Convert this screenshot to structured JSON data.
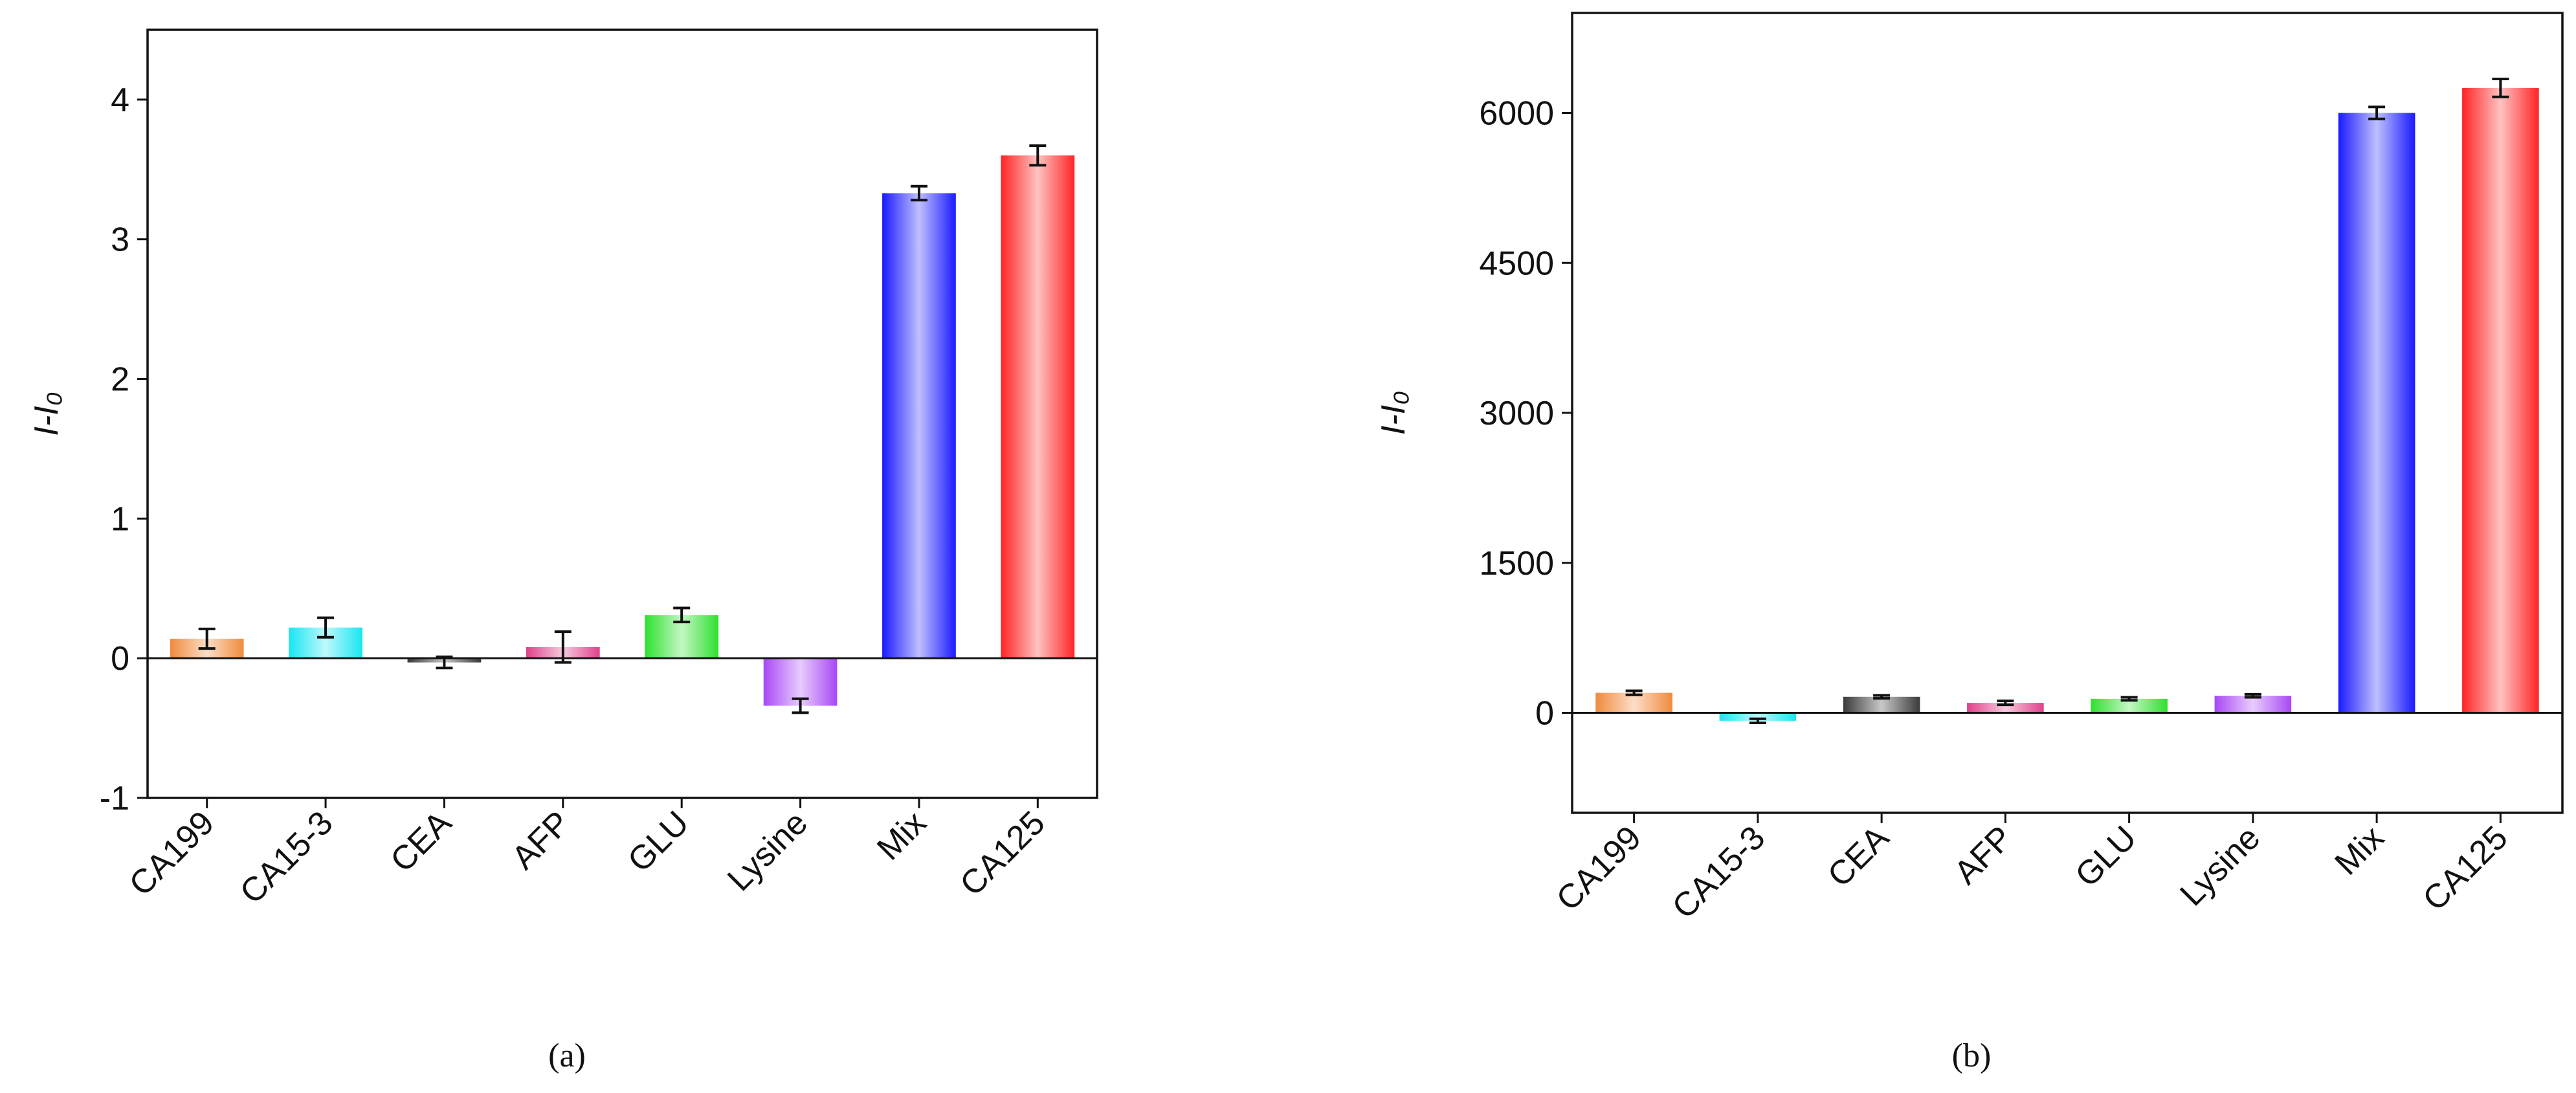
{
  "chart_data": [
    {
      "type": "bar",
      "ylabel": "I-I₀",
      "panel_label": "(a)",
      "categories": [
        "CA199",
        "CA15-3",
        "CEA",
        "AFP",
        "GLU",
        "Lysine",
        "Mix",
        "CA125"
      ],
      "values": [
        0.14,
        0.22,
        -0.03,
        0.08,
        0.31,
        -0.34,
        3.33,
        3.6
      ],
      "errors": [
        0.07,
        0.07,
        0.04,
        0.11,
        0.05,
        0.05,
        0.05,
        0.07
      ],
      "colors": [
        "#f08a3c",
        "#18e6f2",
        "#3a3a3a",
        "#e0408a",
        "#2ee02e",
        "#a848f5",
        "#1a1aff",
        "#ff2424"
      ],
      "ylim": [
        -1,
        4.5
      ],
      "yticks": [
        -1,
        0,
        1,
        2,
        3,
        4
      ]
    },
    {
      "type": "bar",
      "ylabel": "I-I₀",
      "panel_label": "(b)",
      "categories": [
        "CA199",
        "CA15-3",
        "CEA",
        "AFP",
        "GLU",
        "Lysine",
        "Mix",
        "CA125"
      ],
      "values": [
        200,
        -80,
        160,
        100,
        140,
        170,
        6000,
        6250
      ],
      "errors": [
        20,
        20,
        15,
        20,
        15,
        15,
        60,
        90
      ],
      "colors": [
        "#f08a3c",
        "#18e6f2",
        "#3a3a3a",
        "#e0408a",
        "#2ee02e",
        "#a848f5",
        "#1a1aff",
        "#ff2424"
      ],
      "ylim": [
        -1000,
        7000
      ],
      "yticks": [
        0,
        1500,
        3000,
        4500,
        6000
      ]
    }
  ]
}
